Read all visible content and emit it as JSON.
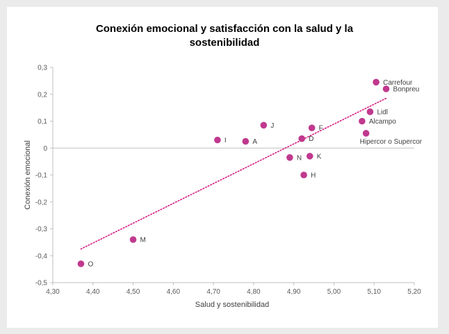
{
  "chart_data": {
    "type": "scatter",
    "title_line1": "Conexión emocional y satisfacción con la salud y la",
    "title_line2": "sostenibilidad",
    "xlabel": "Salud y sostenibilidad",
    "ylabel": "Conexión emocional",
    "xlim": [
      4.3,
      5.2
    ],
    "ylim": [
      -0.5,
      0.3
    ],
    "x_ticks": [
      "4,30",
      "4,40",
      "4,50",
      "4,60",
      "4,70",
      "4,80",
      "4,90",
      "5,00",
      "5,10",
      "5,20"
    ],
    "y_ticks": [
      "0,3",
      "0,2",
      "0,1",
      "0",
      "-0,1",
      "-0,2",
      "-0,3",
      "-0,4",
      "-0,5"
    ],
    "grid": false,
    "trendline": {
      "style": "dotted",
      "from": [
        4.37,
        -0.375
      ],
      "to": [
        5.13,
        0.185
      ]
    },
    "points": [
      {
        "label": "Carrefour",
        "x": 5.105,
        "y": 0.245
      },
      {
        "label": "Bonpreu",
        "x": 5.13,
        "y": 0.22
      },
      {
        "label": "Lidl",
        "x": 5.09,
        "y": 0.135
      },
      {
        "label": "Alcampo",
        "x": 5.07,
        "y": 0.1
      },
      {
        "label": "Hipercor o Supercor",
        "x": 5.08,
        "y": 0.055
      },
      {
        "label": "J",
        "x": 4.825,
        "y": 0.085
      },
      {
        "label": "F",
        "x": 4.945,
        "y": 0.075
      },
      {
        "label": "I",
        "x": 4.71,
        "y": 0.03
      },
      {
        "label": "A",
        "x": 4.78,
        "y": 0.025
      },
      {
        "label": "D",
        "x": 4.92,
        "y": 0.035
      },
      {
        "label": "N",
        "x": 4.89,
        "y": -0.035
      },
      {
        "label": "K",
        "x": 4.94,
        "y": -0.03
      },
      {
        "label": "H",
        "x": 4.925,
        "y": -0.1
      },
      {
        "label": "M",
        "x": 4.5,
        "y": -0.34
      },
      {
        "label": "O",
        "x": 4.37,
        "y": -0.43
      }
    ]
  },
  "colors": {
    "point": "#c0398e",
    "trendline": "#d6197e",
    "axis": "#bfbfbf"
  }
}
